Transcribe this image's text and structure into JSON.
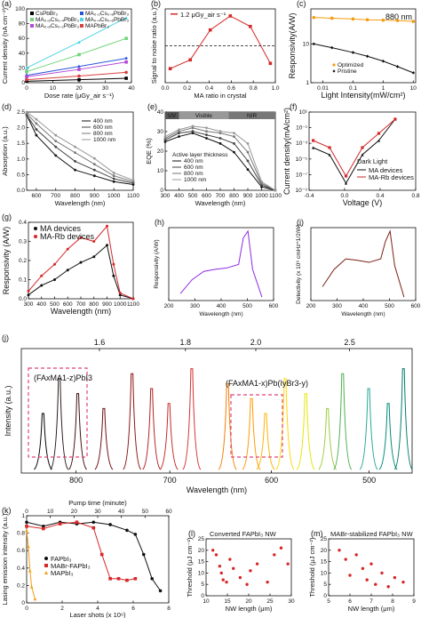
{
  "colors": {
    "cs": "#000000",
    "ma02": "#2a54d8",
    "ma04": "#6fd57a",
    "ma06": "#4fd6e6",
    "ma08": "#b648d6",
    "mapbbr": "#d94040",
    "red": "#d62728",
    "black": "#111111",
    "orange": "#f39c12",
    "purple": "#8e2be2",
    "brown": "#7a1f14",
    "pink": "#e0457b"
  },
  "chart_data": [
    {
      "panel": "a",
      "type": "scatter",
      "xlabel": "Dose rate (μGy_air s⁻¹)",
      "ylabel": "Current density (nA cm⁻²)",
      "xlim": [
        0,
        40
      ],
      "ylim": [
        0,
        100
      ],
      "xticks": [
        "0",
        "10",
        "20",
        "30",
        "40"
      ],
      "yticks": [
        "0",
        "20",
        "40",
        "60",
        "80",
        "100"
      ],
      "legend": [
        "CsPbBr₃",
        "MA₀.₂Cs₀.₈PbBr₃",
        "MA₀.₆Cs₀.₄PbBr₃",
        "MA₀.₄Cs₀.₆PbBr₃",
        "MA₀.₈Cs₀.₂PbBr₃",
        "MAPbBr₃"
      ],
      "series": [
        {
          "name": "CsPbBr₃",
          "x": [
            0,
            20,
            38
          ],
          "y": [
            2,
            4,
            6
          ]
        },
        {
          "name": "MA₀.₂Cs₀.₈PbBr₃",
          "x": [
            0,
            20,
            38
          ],
          "y": [
            10,
            22,
            33
          ]
        },
        {
          "name": "MA₀.₄Cs₀.₆PbBr₃",
          "x": [
            0,
            20,
            38
          ],
          "y": [
            15,
            38,
            60
          ]
        },
        {
          "name": "MA₀.₆Cs₀.₄PbBr₃",
          "x": [
            0,
            20,
            38
          ],
          "y": [
            20,
            55,
            88
          ]
        },
        {
          "name": "MA₀.₈Cs₀.₂PbBr₃",
          "x": [
            0,
            20,
            38
          ],
          "y": [
            8,
            18,
            28
          ]
        },
        {
          "name": "MAPbBr₃",
          "x": [
            0,
            20,
            38
          ],
          "y": [
            4,
            9,
            14
          ]
        }
      ]
    },
    {
      "panel": "b",
      "type": "line",
      "legend": "1.2 μGy_air s⁻¹",
      "xlabel": "MA ratio in crystal",
      "ylabel": "Signal to noise ratio (a.u.)",
      "xticks": [
        "0.0",
        "0.2",
        "0.4",
        "0.6",
        "0.8",
        "1.0"
      ],
      "x": [
        0.0,
        0.2,
        0.4,
        0.6,
        0.8,
        1.0
      ],
      "y": [
        0.8,
        1.3,
        3.0,
        3.8,
        3.2,
        1.1
      ],
      "ylim": [
        0,
        4.2
      ],
      "dashed_line_y": 2.1
    },
    {
      "panel": "c",
      "type": "scatter",
      "title": "880 nm",
      "xlabel": "Light Intensity(mW/cm²)",
      "ylabel": "Responsivity(A/W)",
      "xticks": [
        "0.01",
        "0.1",
        "1",
        "10"
      ],
      "yticks": [
        "1",
        "10"
      ],
      "log_x": true,
      "log_y": true,
      "series": [
        {
          "name": "Optimized",
          "x": [
            0.005,
            0.02,
            0.1,
            0.3,
            1,
            3,
            10
          ],
          "y": [
            48,
            46,
            44,
            42,
            41,
            40,
            38
          ]
        },
        {
          "name": "Pristine",
          "x": [
            0.005,
            0.02,
            0.1,
            0.3,
            1,
            3,
            10
          ],
          "y": [
            10,
            8,
            6,
            4.8,
            3.6,
            2.6,
            1.8
          ]
        }
      ]
    },
    {
      "panel": "d",
      "type": "line",
      "xlabel": "Wavelength (nm)",
      "ylabel": "Absorption (a.u.)",
      "xticks": [
        "600",
        "700",
        "800",
        "900",
        "1000",
        "1100"
      ],
      "yticks": [
        "0.0",
        "0.5",
        "1.0",
        "1.5",
        "2.0",
        "2.5"
      ],
      "xlim": [
        550,
        1100
      ],
      "ylim": [
        0,
        2.7
      ],
      "series": [
        {
          "name": "400 nm",
          "x": [
            550,
            600,
            700,
            800,
            900,
            1000,
            1100
          ],
          "y": [
            2.6,
            1.9,
            1.2,
            0.7,
            0.5,
            0.3,
            0.2
          ]
        },
        {
          "name": "600 nm",
          "x": [
            550,
            600,
            700,
            800,
            900,
            1000,
            1100
          ],
          "y": [
            2.6,
            2.1,
            1.5,
            1.0,
            0.7,
            0.4,
            0.25
          ]
        },
        {
          "name": "800 nm",
          "x": [
            550,
            600,
            700,
            800,
            900,
            1000,
            1100
          ],
          "y": [
            2.65,
            2.3,
            1.7,
            1.3,
            0.9,
            0.5,
            0.3
          ]
        },
        {
          "name": "1000 nm",
          "x": [
            550,
            600,
            700,
            800,
            900,
            1000,
            1100
          ],
          "y": [
            2.7,
            2.45,
            1.9,
            1.5,
            1.1,
            0.6,
            0.35
          ]
        }
      ]
    },
    {
      "panel": "e",
      "type": "line",
      "xlabel": "Wavelength (nm)",
      "ylabel": "EQE (%)",
      "bands": [
        "UV",
        "Visible",
        "NIR"
      ],
      "legend_title": "Active layer thickness",
      "xticks": [
        "300",
        "400",
        "500",
        "600",
        "700",
        "800",
        "900",
        "1000",
        "1100"
      ],
      "yticks": [
        "0",
        "10",
        "20",
        "30",
        "40"
      ],
      "xlim": [
        300,
        1100
      ],
      "ylim": [
        0,
        40
      ],
      "series": [
        {
          "name": "400 nm",
          "x": [
            300,
            400,
            500,
            600,
            700,
            800,
            900,
            1000,
            1100
          ],
          "y": [
            28,
            31,
            33,
            30,
            27,
            22,
            12,
            2,
            0
          ]
        },
        {
          "name": "600 nm",
          "x": [
            300,
            400,
            500,
            600,
            700,
            800,
            900,
            1000,
            1100
          ],
          "y": [
            29,
            33,
            34,
            32,
            30,
            27,
            17,
            3,
            0
          ]
        },
        {
          "name": "800 nm",
          "x": [
            300,
            400,
            500,
            600,
            700,
            800,
            900,
            1000,
            1100
          ],
          "y": [
            30,
            34,
            36,
            34,
            33,
            31,
            22,
            4,
            0
          ]
        },
        {
          "name": "1000 nm",
          "x": [
            300,
            400,
            500,
            600,
            700,
            800,
            900,
            1000,
            1100
          ],
          "y": [
            31,
            35,
            37,
            36,
            34,
            33,
            27,
            5,
            0
          ]
        }
      ]
    },
    {
      "panel": "f",
      "type": "line",
      "xlabel": "Voltage (V)",
      "ylabel": "Current density(mA/cm²)",
      "annotation": "Dark Light",
      "xticks": [
        "-0.4",
        "0.0",
        "0.4",
        "0.8"
      ],
      "yticks": [
        "10⁻⁹",
        "10⁻⁷",
        "10⁻⁵",
        "10⁻³",
        "10⁻¹",
        "10¹"
      ],
      "log_y": true,
      "series": [
        {
          "name": "MA devices",
          "x": [
            -0.4,
            -0.2,
            0.0,
            0.2,
            0.4,
            0.6
          ],
          "y": [
            0.001,
            0.0001,
            1e-08,
            0.0001,
            0.01,
            10
          ]
        },
        {
          "name": "MA-Rb devices",
          "x": [
            -0.4,
            -0.2,
            0.0,
            0.2,
            0.4,
            0.6
          ],
          "y": [
            0.01,
            0.001,
            1e-07,
            0.001,
            0.1,
            10
          ]
        }
      ]
    },
    {
      "panel": "g",
      "type": "line",
      "xlabel": "Wavelength (nm)",
      "ylabel": "Responsivity (A/W)",
      "xticks": [
        "300",
        "400",
        "500",
        "600",
        "700",
        "800",
        "900",
        "1000",
        "1100"
      ],
      "yticks": [
        "0.0",
        "0.1",
        "0.2",
        "0.3",
        "0.4"
      ],
      "xlim": [
        300,
        1100
      ],
      "ylim": [
        0,
        0.4
      ],
      "series": [
        {
          "name": "MA devices",
          "x": [
            300,
            400,
            500,
            600,
            700,
            800,
            900,
            950,
            1000,
            1100
          ],
          "y": [
            0.02,
            0.07,
            0.1,
            0.15,
            0.19,
            0.22,
            0.28,
            0.12,
            0.02,
            0.0
          ]
        },
        {
          "name": "MA-Rb devices",
          "x": [
            300,
            400,
            500,
            600,
            700,
            800,
            900,
            950,
            1000,
            1100
          ],
          "y": [
            0.04,
            0.12,
            0.18,
            0.26,
            0.32,
            0.3,
            0.38,
            0.18,
            0.03,
            0.0
          ]
        }
      ]
    },
    {
      "panel": "h",
      "type": "line",
      "xlabel": "Wavelength (nm)",
      "ylabel": "Responsivity (A/W)",
      "xticks": [
        "200",
        "300",
        "400",
        "500",
        "600"
      ],
      "xlim": [
        200,
        650
      ],
      "series": [
        {
          "name": "",
          "x": [
            250,
            300,
            350,
            400,
            450,
            500,
            520,
            540,
            560,
            600
          ],
          "y": [
            0.1,
            0.3,
            0.42,
            0.45,
            0.47,
            0.52,
            0.9,
            1.0,
            0.45,
            0.05
          ]
        }
      ]
    },
    {
      "panel": "i",
      "type": "line",
      "xlabel": "Wavelength (nm)",
      "ylabel": "Detectivity (x 10⁹ cmHz^1/2/W)",
      "xticks": [
        "200",
        "300",
        "400",
        "500",
        "600"
      ],
      "xlim": [
        200,
        650
      ],
      "series": [
        {
          "name": "",
          "x": [
            250,
            300,
            350,
            400,
            450,
            500,
            520,
            540,
            560,
            600
          ],
          "y": [
            0.2,
            0.45,
            0.6,
            0.58,
            0.55,
            0.6,
            0.85,
            1.0,
            0.5,
            0.05
          ]
        }
      ]
    },
    {
      "panel": "j",
      "type": "line",
      "xlabel": "Wavelength (nm)",
      "ylabel": "Intensity (a.u.)",
      "top_ticks": [
        "1.6",
        "1.8",
        "2.0",
        "2.5"
      ],
      "xticks": [
        "800",
        "700",
        "600",
        "500"
      ],
      "labels": [
        "(FAxMA1-z)PbI3",
        "(FAxMA1-x)Pb(IyBr3-y)"
      ],
      "peaks_nm": [
        810,
        795,
        778,
        754,
        728,
        710,
        694,
        673,
        640,
        618,
        605,
        587,
        568,
        548,
        534,
        510,
        492,
        478
      ]
    },
    {
      "panel": "k",
      "type": "scatter",
      "xlabel": "Laser shots (x 10⁶)",
      "ylabel": "Lasing emission intensity (a.u.)",
      "top_label": "Pump time (minute)",
      "top_ticks": [
        "0",
        "10",
        "20",
        "30",
        "40",
        "50",
        "60"
      ],
      "xticks": [
        "0",
        "2",
        "4",
        "6",
        "8"
      ],
      "yticks": [
        "0",
        "0.2",
        "0.4",
        "0.6",
        "0.8",
        "1"
      ],
      "series": [
        {
          "name": "FAPbI₃",
          "x": [
            0,
            1,
            2,
            3,
            4,
            5,
            6,
            6.5,
            7,
            7.5,
            8
          ],
          "y": [
            1,
            0.95,
            1,
            0.98,
            1.0,
            0.97,
            0.9,
            0.85,
            0.6,
            0.3,
            0.15
          ]
        },
        {
          "name": "MABr-FAPbI₃",
          "x": [
            0,
            1,
            2,
            3,
            4,
            4.5,
            5,
            5.5,
            6,
            6.5
          ],
          "y": [
            0.95,
            0.92,
            0.98,
            1.0,
            0.93,
            0.6,
            0.3,
            0.3,
            0.28,
            0.3
          ]
        },
        {
          "name": "MAPbI₃",
          "x": [
            0,
            0.1,
            0.2,
            0.3,
            0.5
          ],
          "y": [
            0.9,
            0.7,
            0.4,
            0.2,
            0.05
          ]
        }
      ]
    },
    {
      "panel": "l",
      "type": "scatter",
      "title": "Converted FAPbI₃ NW",
      "xlabel": "NW length (μm)",
      "ylabel": "Threshold (μJ cm⁻²)",
      "xticks": [
        "10",
        "15",
        "20",
        "25",
        "30"
      ],
      "yticks": [
        "0",
        "5",
        "10",
        "15",
        "20",
        "25"
      ],
      "xlim": [
        5,
        30
      ],
      "ylim": [
        0,
        25
      ],
      "series": [
        {
          "name": "",
          "x": [
            7,
            8,
            9,
            9.5,
            10,
            11,
            12,
            13,
            15,
            17,
            18,
            20,
            23,
            25,
            27,
            29
          ],
          "y": [
            20,
            18,
            13,
            10,
            7,
            6,
            16,
            12,
            8,
            5,
            11,
            14,
            6,
            18,
            21,
            14
          ]
        }
      ]
    },
    {
      "panel": "m",
      "type": "scatter",
      "title": "MABr-stabilized FAPbI₃ NW",
      "xlabel": "NW length (μm)",
      "ylabel": "Threshold (μJ cm⁻²)",
      "xticks": [
        "5",
        "6",
        "7",
        "8",
        "9"
      ],
      "yticks": [
        "0",
        "5",
        "10",
        "15",
        "20",
        "25"
      ],
      "xlim": [
        5,
        9
      ],
      "ylim": [
        0,
        25
      ],
      "series": [
        {
          "name": "",
          "x": [
            5.5,
            5.8,
            6,
            6.3,
            6.6,
            6.8,
            7,
            7.2,
            7.5,
            7.8,
            8.1,
            8.5
          ],
          "y": [
            20,
            16,
            9,
            18,
            12,
            7,
            14,
            5,
            10,
            4,
            8,
            6
          ]
        }
      ]
    }
  ],
  "figure": {
    "panel_letters": [
      "(a)",
      "(b)",
      "(c)",
      "(d)",
      "(e)",
      "(f)",
      "(g)",
      "(h)",
      "(i)",
      "(j)",
      "(k)",
      "(l)",
      "(m)"
    ]
  }
}
